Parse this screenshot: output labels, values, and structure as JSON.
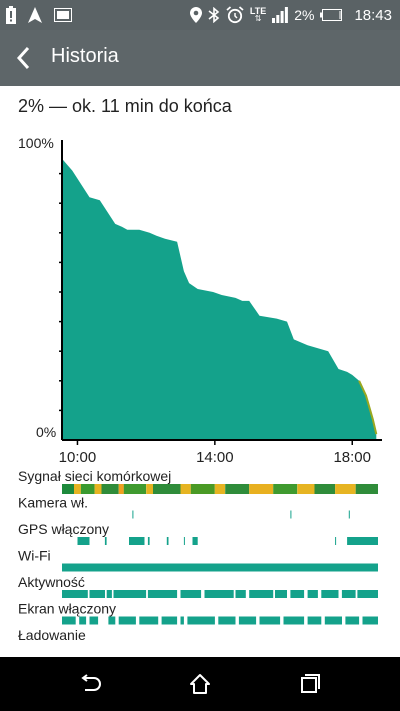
{
  "status_bar": {
    "network_label": "LTE",
    "battery_percent": "2%",
    "time": "18:43",
    "left_icons": [
      "battery-alert-icon",
      "navigation-icon",
      "image-icon"
    ],
    "right_icons": [
      "location-icon",
      "bluetooth-icon",
      "alarm-icon",
      "lte-icon",
      "signal-icon",
      "battery-icon"
    ]
  },
  "app_bar": {
    "title": "Historia",
    "back_icon": "back-arrow-icon"
  },
  "summary": "2% — ok. 11 min do końca",
  "chart_data": {
    "type": "area",
    "title": "",
    "xlabel": "",
    "ylabel": "",
    "y_unit": "%",
    "ylim": [
      0,
      100
    ],
    "y_tick_labels": [
      "100%",
      "0%"
    ],
    "x_tick_labels": [
      "10:00",
      "14:00",
      "18:00"
    ],
    "x_ticks_hours": [
      10,
      14,
      18
    ],
    "x_domain_hours": [
      9.55,
      18.75
    ],
    "fill_color": "#14a28b",
    "low_color": "#9aa820",
    "series": [
      {
        "x_hours": [
          9.55,
          9.85,
          10.35,
          10.65,
          11.1,
          11.3,
          11.45,
          11.8,
          12.1,
          12.3,
          12.55,
          12.9,
          13.1,
          13.25,
          13.5,
          13.95,
          14.2,
          14.6,
          14.8,
          15.0,
          15.3,
          15.8,
          16.1,
          16.3,
          16.7,
          17.3,
          17.6,
          17.85,
          18.0,
          18.2,
          18.4,
          18.6,
          18.7
        ],
        "values": [
          95,
          91,
          82,
          81,
          73,
          72,
          71,
          71,
          70,
          69,
          68,
          67,
          57,
          53,
          51,
          50,
          49,
          48,
          47,
          47,
          42,
          41,
          40,
          34,
          32,
          30,
          24,
          23,
          22,
          20,
          15,
          7,
          2
        ]
      }
    ],
    "tracks": [
      {
        "label": "Sygnał sieci komórkowej",
        "style": "signal",
        "height": "tall",
        "segments": [
          {
            "from": 9.55,
            "to": 9.9,
            "color": "#1e8a3c"
          },
          {
            "from": 9.9,
            "to": 10.1,
            "color": "#e6b422"
          },
          {
            "from": 10.1,
            "to": 10.5,
            "color": "#3a9a30"
          },
          {
            "from": 10.5,
            "to": 10.7,
            "color": "#e6b422"
          },
          {
            "from": 10.7,
            "to": 11.2,
            "color": "#2f8c3a"
          },
          {
            "from": 11.2,
            "to": 11.35,
            "color": "#f0a020"
          },
          {
            "from": 11.35,
            "to": 12.0,
            "color": "#3f9a2f"
          },
          {
            "from": 12.0,
            "to": 12.2,
            "color": "#e6b422"
          },
          {
            "from": 12.2,
            "to": 13.0,
            "color": "#2f8c3a"
          },
          {
            "from": 13.0,
            "to": 13.3,
            "color": "#e6b422"
          },
          {
            "from": 13.3,
            "to": 14.0,
            "color": "#4a9a25"
          },
          {
            "from": 14.0,
            "to": 14.3,
            "color": "#e6b422"
          },
          {
            "from": 14.3,
            "to": 15.0,
            "color": "#2f8c3a"
          },
          {
            "from": 15.0,
            "to": 15.7,
            "color": "#e8b020"
          },
          {
            "from": 15.7,
            "to": 16.4,
            "color": "#3f9a2f"
          },
          {
            "from": 16.4,
            "to": 16.9,
            "color": "#e6b422"
          },
          {
            "from": 16.9,
            "to": 17.5,
            "color": "#2f8c3a"
          },
          {
            "from": 17.5,
            "to": 18.1,
            "color": "#e6b422"
          },
          {
            "from": 18.1,
            "to": 18.75,
            "color": "#2f8c3a"
          }
        ]
      },
      {
        "label": "Kamera wł.",
        "style": "events",
        "height": "thin",
        "color": "#14a28b",
        "segments": [
          {
            "from": 11.6,
            "to": 11.63
          },
          {
            "from": 16.2,
            "to": 16.23
          },
          {
            "from": 17.9,
            "to": 17.93
          }
        ]
      },
      {
        "label": "GPS włączony",
        "style": "events",
        "height": "thin",
        "color": "#14a28b",
        "segments": [
          {
            "from": 10.0,
            "to": 10.35
          },
          {
            "from": 10.8,
            "to": 10.85
          },
          {
            "from": 11.5,
            "to": 11.95
          },
          {
            "from": 12.05,
            "to": 12.1
          },
          {
            "from": 12.6,
            "to": 12.65
          },
          {
            "from": 13.1,
            "to": 13.13
          },
          {
            "from": 13.35,
            "to": 13.5
          },
          {
            "from": 17.5,
            "to": 17.53
          },
          {
            "from": 17.85,
            "to": 18.75
          }
        ]
      },
      {
        "label": "Wi-Fi",
        "style": "events",
        "height": "thin",
        "color": "#14a28b",
        "segments": [
          {
            "from": 9.55,
            "to": 18.75
          }
        ]
      },
      {
        "label": "Aktywność",
        "style": "events",
        "height": "thin",
        "color": "#14a28b",
        "segments": [
          {
            "from": 9.55,
            "to": 10.3
          },
          {
            "from": 10.35,
            "to": 10.8
          },
          {
            "from": 10.85,
            "to": 11.0
          },
          {
            "from": 11.05,
            "to": 12.0
          },
          {
            "from": 12.05,
            "to": 12.9
          },
          {
            "from": 13.0,
            "to": 13.6
          },
          {
            "from": 13.7,
            "to": 14.55
          },
          {
            "from": 14.6,
            "to": 14.9
          },
          {
            "from": 15.0,
            "to": 15.7
          },
          {
            "from": 15.75,
            "to": 16.1
          },
          {
            "from": 16.2,
            "to": 16.6
          },
          {
            "from": 16.7,
            "to": 17.0
          },
          {
            "from": 17.1,
            "to": 17.6
          },
          {
            "from": 17.7,
            "to": 18.1
          },
          {
            "from": 18.15,
            "to": 18.75
          }
        ]
      },
      {
        "label": "Ekran włączony",
        "style": "events",
        "height": "thin",
        "color": "#14a28b",
        "segments": [
          {
            "from": 9.55,
            "to": 9.95
          },
          {
            "from": 10.05,
            "to": 10.25
          },
          {
            "from": 10.35,
            "to": 10.6
          },
          {
            "from": 10.9,
            "to": 11.1
          },
          {
            "from": 11.2,
            "to": 11.7
          },
          {
            "from": 11.8,
            "to": 12.35
          },
          {
            "from": 12.45,
            "to": 12.9
          },
          {
            "from": 13.0,
            "to": 13.1
          },
          {
            "from": 13.2,
            "to": 14.0
          },
          {
            "from": 14.1,
            "to": 14.6
          },
          {
            "from": 14.7,
            "to": 15.2
          },
          {
            "from": 15.3,
            "to": 15.9
          },
          {
            "from": 16.0,
            "to": 16.6
          },
          {
            "from": 16.7,
            "to": 17.1
          },
          {
            "from": 17.2,
            "to": 17.7
          },
          {
            "from": 17.8,
            "to": 18.2
          },
          {
            "from": 18.3,
            "to": 18.75
          }
        ]
      },
      {
        "label": "Ładowanie",
        "style": "events",
        "height": "thin",
        "color": "#14a28b",
        "segments": []
      }
    ]
  },
  "nav_bar": {
    "icons": [
      "back-nav-icon",
      "home-icon",
      "recents-icon"
    ]
  }
}
